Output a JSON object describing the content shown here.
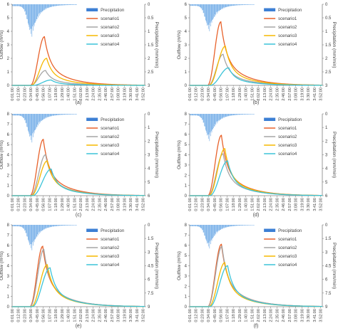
{
  "figure": {
    "legend": {
      "precipitation": "Precipitation",
      "s1": "scenario1",
      "s2": "scenario2",
      "s3": "scenario3",
      "s4": "scenario4"
    },
    "colors": {
      "precip": "#6aa8e6",
      "precip_legend": "#3d7fd4",
      "s1": "#e8622b",
      "s2": "#a6a6a6",
      "s3": "#f5b800",
      "s4": "#3cc4d8",
      "axis": "#7f7f7f",
      "text": "#404040"
    }
  },
  "chart_data": [
    {
      "panel": "(a)",
      "type": "line",
      "ylabel": "Outflow (m³/s)",
      "y2label": "Precipitation (mm/min)",
      "ylim": [
        0,
        6
      ],
      "yticks": [
        0,
        1,
        2,
        3,
        4,
        5,
        6
      ],
      "y2lim": [
        0,
        3
      ],
      "y2ticks": [
        "0",
        "0.5",
        "1",
        "1.5",
        "2",
        "2.5",
        "3"
      ],
      "xticks": [
        "0:01:00",
        "0:12:00",
        "0:23:00",
        "0:34:00",
        "0:45:00",
        "0:56:00",
        "1:07:00",
        "1:18:00",
        "1:29:00",
        "1:40:00",
        "1:51:00",
        "2:02:00",
        "2:13:00",
        "2:24:00",
        "2:35:00",
        "2:46:00",
        "2:57:00",
        "3:08:00",
        "3:19:00",
        "3:30:00",
        "3:41:00",
        "3:52:00"
      ],
      "x_minutes_range": [
        1,
        235
      ],
      "precip_peak": 1.2,
      "series": [
        {
          "key": "s1",
          "name": "scenario1",
          "peak": 3.6,
          "t_peak": 58
        },
        {
          "key": "s2",
          "name": "scenario2",
          "peak": 1.1,
          "t_peak": 60
        },
        {
          "key": "s3",
          "name": "scenario3",
          "peak": 2.0,
          "t_peak": 62
        },
        {
          "key": "s4",
          "name": "scenario4",
          "peak": 0.4,
          "t_peak": 70
        }
      ]
    },
    {
      "panel": "(b)",
      "type": "line",
      "ylabel": "Outflow (m³/s)",
      "y2label": "Precipitation (mm/min)",
      "ylim": [
        0,
        6
      ],
      "yticks": [
        0,
        1,
        2,
        3,
        4,
        5,
        6
      ],
      "y2lim": [
        0,
        3
      ],
      "y2ticks": [
        "0",
        "0.5",
        "1",
        "1.5",
        "2",
        "2.5",
        "3"
      ],
      "xticks": [
        "0:01:00",
        "0:12:00",
        "0:23:00",
        "0:34:00",
        "0:45:00",
        "0:56:00",
        "1:07:00",
        "1:18:00",
        "1:29:00",
        "1:40:00",
        "1:51:00",
        "2:02:00",
        "2:13:00",
        "2:24:00",
        "2:35:00",
        "2:46:00",
        "2:57:00",
        "3:08:00",
        "3:19:00",
        "3:30:00",
        "3:41:00",
        "3:52:00"
      ],
      "x_minutes_range": [
        1,
        235
      ],
      "precip_peak": 1.0,
      "series": [
        {
          "key": "s1",
          "name": "scenario1",
          "peak": 4.7,
          "t_peak": 56
        },
        {
          "key": "s2",
          "name": "scenario2",
          "peak": 2.3,
          "t_peak": 60
        },
        {
          "key": "s3",
          "name": "scenario3",
          "peak": 2.9,
          "t_peak": 64
        },
        {
          "key": "s4",
          "name": "scenario4",
          "peak": 1.3,
          "t_peak": 70
        }
      ]
    },
    {
      "panel": "(c)",
      "type": "line",
      "ylabel": "Outflow (m³/s)",
      "y2label": "Precipitation (mm/min)",
      "ylim": [
        0,
        8
      ],
      "yticks": [
        0,
        1,
        2,
        3,
        4,
        5,
        6,
        7,
        8
      ],
      "y2lim": [
        0,
        6
      ],
      "y2ticks": [
        "0",
        "1",
        "2",
        "3",
        "4",
        "5",
        "6"
      ],
      "xticks": [
        "0:01:00",
        "0:12:00",
        "0:23:00",
        "0:34:00",
        "0:45:00",
        "0:56:00",
        "1:07:00",
        "1:18:00",
        "1:29:00",
        "1:40:00",
        "1:51:00",
        "2:02:00",
        "2:13:00",
        "2:24:00",
        "2:35:00",
        "2:46:00",
        "2:57:00",
        "3:08:00",
        "3:19:00",
        "3:30:00",
        "3:41:00",
        "3:52:00"
      ],
      "x_minutes_range": [
        1,
        235
      ],
      "precip_peak": 2.1,
      "series": [
        {
          "key": "s1",
          "name": "scenario1",
          "peak": 5.5,
          "t_peak": 56
        },
        {
          "key": "s2",
          "name": "scenario2",
          "peak": 4.0,
          "t_peak": 60
        },
        {
          "key": "s3",
          "name": "scenario3",
          "peak": 3.4,
          "t_peak": 63
        },
        {
          "key": "s4",
          "name": "scenario4",
          "peak": 2.6,
          "t_peak": 70
        }
      ]
    },
    {
      "panel": "(d)",
      "type": "line",
      "ylabel": "Outflow (m³/s)",
      "y2label": "Precipitation (mm/min)",
      "ylim": [
        0,
        8
      ],
      "yticks": [
        0,
        1,
        2,
        3,
        4,
        5,
        6,
        7,
        8
      ],
      "y2lim": [
        0,
        6
      ],
      "y2ticks": [
        "0",
        "1",
        "2",
        "3",
        "4",
        "5",
        "6"
      ],
      "xticks": [
        "0:01:00",
        "0:12:00",
        "0:23:00",
        "0:34:00",
        "0:45:00",
        "0:56:00",
        "1:07:00",
        "1:18:00",
        "1:29:00",
        "1:40:00",
        "1:51:00",
        "2:02:00",
        "2:13:00",
        "2:24:00",
        "2:35:00",
        "2:46:00",
        "2:57:00",
        "3:08:00",
        "3:19:00",
        "3:30:00",
        "3:41:00",
        "3:52:00"
      ],
      "x_minutes_range": [
        1,
        235
      ],
      "precip_peak": 2.0,
      "series": [
        {
          "key": "s1",
          "name": "scenario1",
          "peak": 5.9,
          "t_peak": 57
        },
        {
          "key": "s2",
          "name": "scenario2",
          "peak": 4.1,
          "t_peak": 60
        },
        {
          "key": "s3",
          "name": "scenario3",
          "peak": 4.6,
          "t_peak": 63
        },
        {
          "key": "s4",
          "name": "scenario4",
          "peak": 3.4,
          "t_peak": 68
        }
      ]
    },
    {
      "panel": "(e)",
      "type": "line",
      "ylabel": "Outflow (m³/s)",
      "y2label": "Precipitation (mm/min)",
      "ylim": [
        0,
        8
      ],
      "yticks": [
        0,
        1,
        2,
        3,
        4,
        5,
        6,
        7,
        8
      ],
      "y2lim": [
        0,
        9
      ],
      "y2ticks": [
        "0",
        "1.5",
        "3",
        "4.5",
        "6",
        "7.5",
        "9"
      ],
      "xticks": [
        "0:01:00",
        "0:12:00",
        "0:23:00",
        "0:34:00",
        "0:45:00",
        "0:56:00",
        "1:07:00",
        "1:18:00",
        "1:29:00",
        "1:40:00",
        "1:51:00",
        "2:02:00",
        "2:13:00",
        "2:24:00",
        "2:35:00",
        "2:46:00",
        "2:57:00",
        "3:08:00",
        "3:19:00",
        "3:30:00",
        "3:41:00",
        "3:52:00"
      ],
      "x_minutes_range": [
        1,
        235
      ],
      "precip_peak": 2.8,
      "series": [
        {
          "key": "s1",
          "name": "scenario1",
          "peak": 5.9,
          "t_peak": 55
        },
        {
          "key": "s2",
          "name": "scenario2",
          "peak": 5.6,
          "t_peak": 57
        },
        {
          "key": "s3",
          "name": "scenario3",
          "peak": 4.1,
          "t_peak": 63
        },
        {
          "key": "s4",
          "name": "scenario4",
          "peak": 3.8,
          "t_peak": 68
        }
      ]
    },
    {
      "panel": "(f)",
      "type": "line",
      "ylabel": "Outflow (m³/s)",
      "y2label": "Precipitation (mm/min)",
      "ylim": [
        0,
        8
      ],
      "yticks": [
        0,
        1,
        2,
        3,
        4,
        5,
        6,
        7,
        8
      ],
      "y2lim": [
        0,
        9
      ],
      "y2ticks": [
        "0",
        "1.5",
        "3",
        "4.5",
        "6",
        "7.5",
        "9"
      ],
      "xticks": [
        "0:01:00",
        "0:12:00",
        "0:23:00",
        "0:34:00",
        "0:45:00",
        "0:56:00",
        "1:07:00",
        "1:18:00",
        "1:29:00",
        "1:40:00",
        "1:51:00",
        "2:02:00",
        "2:13:00",
        "2:24:00",
        "2:35:00",
        "2:46:00",
        "2:57:00",
        "3:08:00",
        "3:19:00",
        "3:30:00",
        "3:41:00",
        "3:52:00"
      ],
      "x_minutes_range": [
        1,
        235
      ],
      "precip_peak": 2.6,
      "series": [
        {
          "key": "s1",
          "name": "scenario1",
          "peak": 6.1,
          "t_peak": 57
        },
        {
          "key": "s2",
          "name": "scenario2",
          "peak": 5.9,
          "t_peak": 58
        },
        {
          "key": "s3",
          "name": "scenario3",
          "peak": 4.3,
          "t_peak": 63
        },
        {
          "key": "s4",
          "name": "scenario4",
          "peak": 4.0,
          "t_peak": 68
        }
      ]
    }
  ]
}
